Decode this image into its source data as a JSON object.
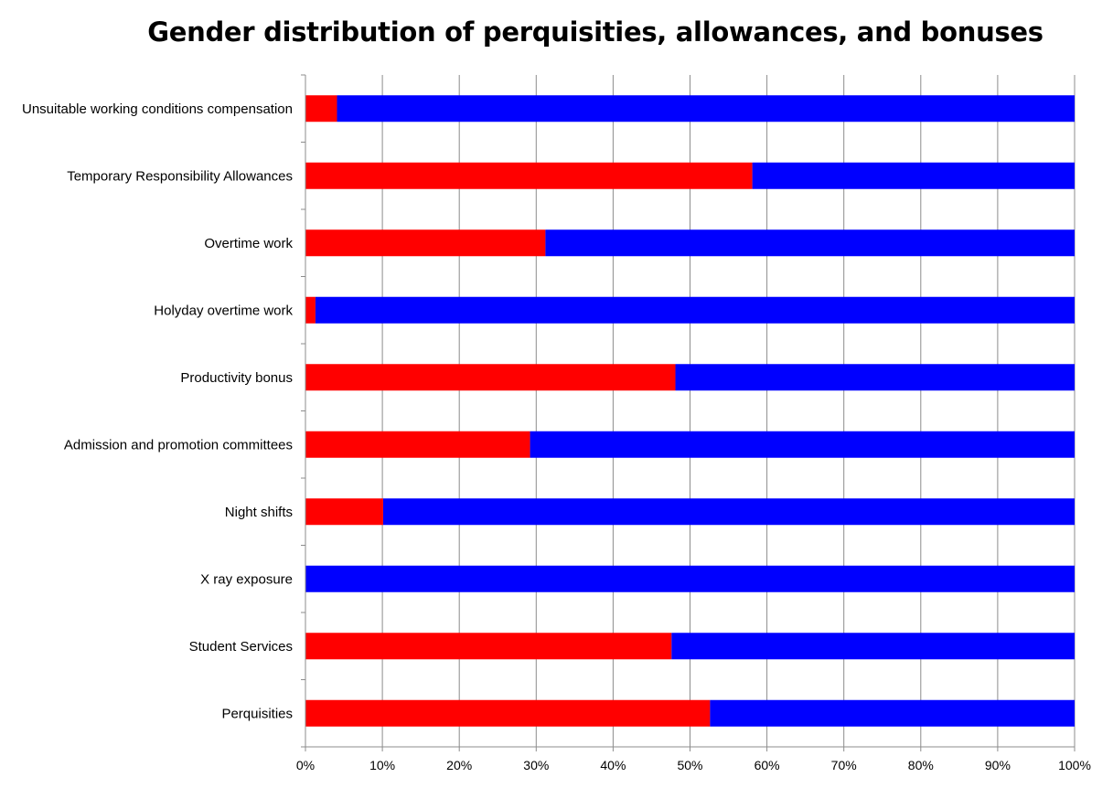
{
  "chart_data": {
    "type": "bar",
    "orientation": "horizontal",
    "stacked": "percent",
    "title": "Gender distribution of perquisities, allowances, and bonuses",
    "xlabel": "",
    "ylabel": "",
    "xlim": [
      0,
      100
    ],
    "x_tick_labels": [
      "0%",
      "10%",
      "20%",
      "30%",
      "40%",
      "50%",
      "60%",
      "70%",
      "80%",
      "90%",
      "100%"
    ],
    "categories": [
      "Unsuitable working conditions compensation",
      "Temporary Responsibility Allowances",
      "Overtime work",
      "Holyday overtime work",
      "Productivity bonus",
      "Admission and promotion committees",
      "Night shifts",
      "X ray exposure",
      "Student Services",
      "Perquisities"
    ],
    "series": [
      {
        "color": "#ff0000",
        "values": [
          4.1,
          58.1,
          31.2,
          1.3,
          48.1,
          29.2,
          10.1,
          0,
          47.6,
          52.6
        ]
      },
      {
        "color": "#0000ff",
        "values": [
          95.9,
          41.9,
          68.8,
          98.7,
          51.9,
          70.8,
          89.9,
          100,
          52.4,
          47.4
        ]
      }
    ],
    "grid": true,
    "legend": "none"
  }
}
